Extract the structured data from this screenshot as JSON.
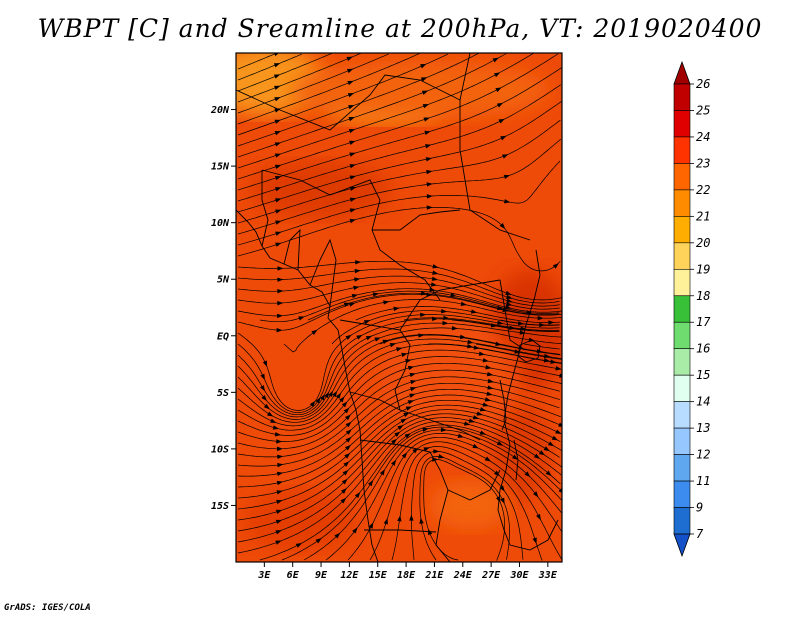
{
  "title": "WBPT [C] and Sreamline at 200hPa, VT: 2019020400",
  "credit": "GrADS: IGES/COLA",
  "chart_data": {
    "type": "heatmap",
    "title": "WBPT [C] and Sreamline at 200hPa, VT: 2019020400",
    "variable": "WBPT [C]",
    "overlay": "streamlines",
    "level": "200hPa",
    "valid_time": "2019020400",
    "x_axis": {
      "ticks": [
        3,
        6,
        9,
        12,
        15,
        18,
        21,
        24,
        27,
        30,
        33
      ],
      "tick_labels": [
        "3E",
        "6E",
        "9E",
        "12E",
        "15E",
        "18E",
        "21E",
        "24E",
        "27E",
        "30E",
        "33E"
      ],
      "range": [
        0,
        34.5
      ]
    },
    "y_axis": {
      "ticks": [
        20,
        15,
        10,
        5,
        0,
        -5,
        -10,
        -15
      ],
      "tick_labels": [
        "20N",
        "15N",
        "10N",
        "5N",
        "EQ",
        "5S",
        "10S",
        "15S"
      ],
      "range": [
        -20,
        25
      ]
    },
    "colorbar": {
      "labels": [
        "26",
        "25",
        "24",
        "23",
        "22",
        "21",
        "20",
        "19",
        "18",
        "17",
        "16",
        "15",
        "14",
        "13",
        "12",
        "11",
        "9",
        "7"
      ],
      "colors": [
        "#a00000",
        "#c00000",
        "#e00000",
        "#ff3300",
        "#ff6600",
        "#ff8c00",
        "#ffad00",
        "#ffd35a",
        "#fff09a",
        "#38c038",
        "#6edc6e",
        "#a8eca8",
        "#e0fff0",
        "#b8dcff",
        "#96c8ff",
        "#5fa8f0",
        "#3c8cf0",
        "#1e6ed2",
        "#1450c8"
      ]
    },
    "field_colors": {
      "main": "#ee4a08",
      "dark": "#de3a04",
      "warm": "#f36410",
      "warmer": "#f8951c",
      "land_outline": "#000000",
      "streamline": "#000000"
    }
  }
}
